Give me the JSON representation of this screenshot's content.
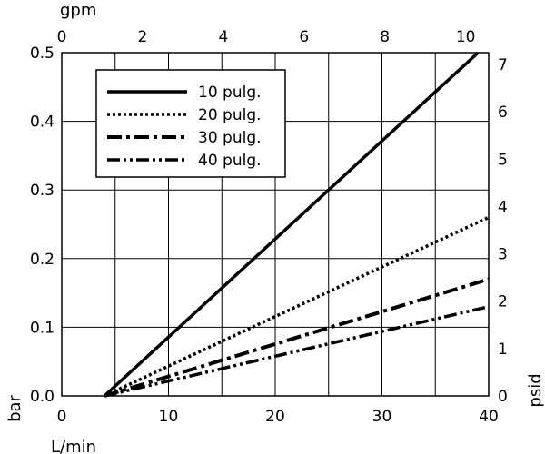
{
  "chart_data": {
    "type": "line",
    "title": "",
    "x_bottom": {
      "label": "L/min",
      "range": [
        0,
        40
      ],
      "ticks": [
        0,
        10,
        20,
        30,
        40
      ]
    },
    "x_top": {
      "label": "gpm",
      "range": [
        0,
        10.57
      ],
      "ticks": [
        0,
        2,
        4,
        6,
        8,
        10
      ]
    },
    "y_left": {
      "label": "bar",
      "range": [
        0,
        0.5
      ],
      "ticks": [
        0.0,
        0.1,
        0.2,
        0.3,
        0.4,
        0.5
      ],
      "tick_labels": [
        "0.0",
        "0.1",
        "0.2",
        "0.3",
        "0.4",
        "0.5"
      ]
    },
    "y_right": {
      "label": "psid",
      "range": [
        0,
        7.25
      ],
      "ticks": [
        0,
        1,
        2,
        3,
        4,
        5,
        6,
        7
      ]
    },
    "grid": true,
    "legend_position": "top-left",
    "series": [
      {
        "name": "10 pulg.",
        "style": "solid",
        "points": [
          [
            4,
            0.0
          ],
          [
            39,
            0.5
          ]
        ]
      },
      {
        "name": "20 pulg.",
        "style": "dotted",
        "points": [
          [
            4,
            0.0
          ],
          [
            40,
            0.26
          ]
        ]
      },
      {
        "name": "30 pulg.",
        "style": "dash-dot",
        "points": [
          [
            4,
            0.0
          ],
          [
            40,
            0.17
          ]
        ]
      },
      {
        "name": "40 pulg.",
        "style": "dash-dot-dot",
        "points": [
          [
            4,
            0.0
          ],
          [
            40,
            0.13
          ]
        ]
      }
    ]
  }
}
